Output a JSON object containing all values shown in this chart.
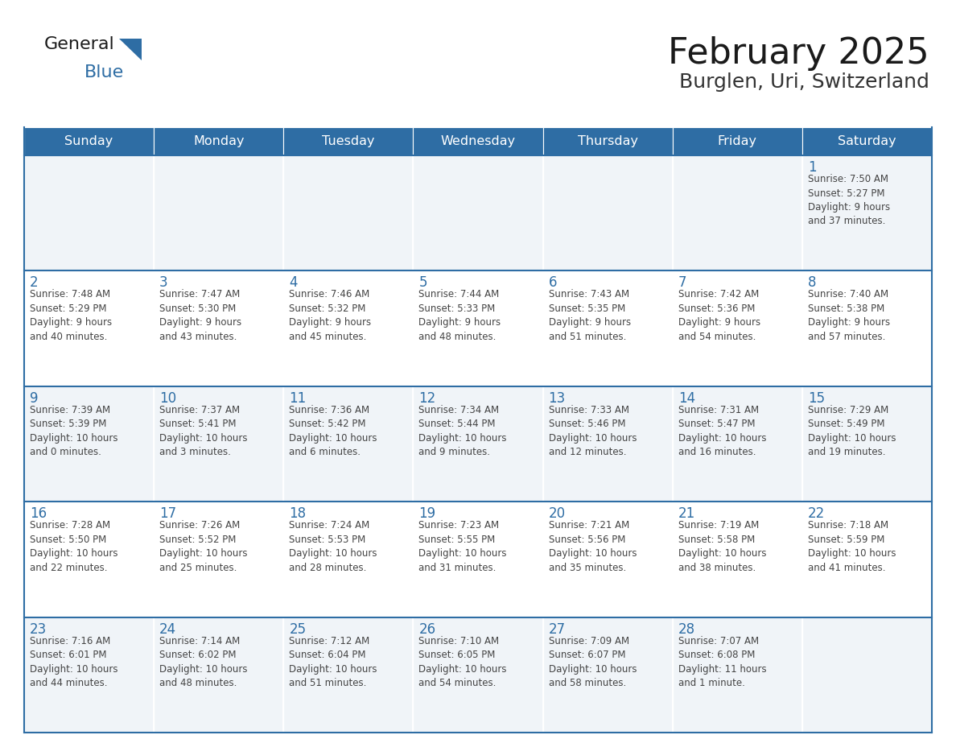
{
  "title": "February 2025",
  "subtitle": "Burglen, Uri, Switzerland",
  "header_color": "#2E6DA4",
  "header_text_color": "#FFFFFF",
  "cell_bg_even": "#FFFFFF",
  "cell_bg_odd": "#F0F4F8",
  "border_color": "#2E6DA4",
  "day_headers": [
    "Sunday",
    "Monday",
    "Tuesday",
    "Wednesday",
    "Thursday",
    "Friday",
    "Saturday"
  ],
  "title_color": "#1a1a1a",
  "subtitle_color": "#333333",
  "day_num_color": "#2E6DA4",
  "cell_text_color": "#444444",
  "logo_general_color": "#1a1a1a",
  "logo_blue_color": "#2E6DA4",
  "logo_triangle_color": "#2E6DA4",
  "weeks": [
    [
      {
        "day": null,
        "info": null
      },
      {
        "day": null,
        "info": null
      },
      {
        "day": null,
        "info": null
      },
      {
        "day": null,
        "info": null
      },
      {
        "day": null,
        "info": null
      },
      {
        "day": null,
        "info": null
      },
      {
        "day": 1,
        "info": "Sunrise: 7:50 AM\nSunset: 5:27 PM\nDaylight: 9 hours\nand 37 minutes."
      }
    ],
    [
      {
        "day": 2,
        "info": "Sunrise: 7:48 AM\nSunset: 5:29 PM\nDaylight: 9 hours\nand 40 minutes."
      },
      {
        "day": 3,
        "info": "Sunrise: 7:47 AM\nSunset: 5:30 PM\nDaylight: 9 hours\nand 43 minutes."
      },
      {
        "day": 4,
        "info": "Sunrise: 7:46 AM\nSunset: 5:32 PM\nDaylight: 9 hours\nand 45 minutes."
      },
      {
        "day": 5,
        "info": "Sunrise: 7:44 AM\nSunset: 5:33 PM\nDaylight: 9 hours\nand 48 minutes."
      },
      {
        "day": 6,
        "info": "Sunrise: 7:43 AM\nSunset: 5:35 PM\nDaylight: 9 hours\nand 51 minutes."
      },
      {
        "day": 7,
        "info": "Sunrise: 7:42 AM\nSunset: 5:36 PM\nDaylight: 9 hours\nand 54 minutes."
      },
      {
        "day": 8,
        "info": "Sunrise: 7:40 AM\nSunset: 5:38 PM\nDaylight: 9 hours\nand 57 minutes."
      }
    ],
    [
      {
        "day": 9,
        "info": "Sunrise: 7:39 AM\nSunset: 5:39 PM\nDaylight: 10 hours\nand 0 minutes."
      },
      {
        "day": 10,
        "info": "Sunrise: 7:37 AM\nSunset: 5:41 PM\nDaylight: 10 hours\nand 3 minutes."
      },
      {
        "day": 11,
        "info": "Sunrise: 7:36 AM\nSunset: 5:42 PM\nDaylight: 10 hours\nand 6 minutes."
      },
      {
        "day": 12,
        "info": "Sunrise: 7:34 AM\nSunset: 5:44 PM\nDaylight: 10 hours\nand 9 minutes."
      },
      {
        "day": 13,
        "info": "Sunrise: 7:33 AM\nSunset: 5:46 PM\nDaylight: 10 hours\nand 12 minutes."
      },
      {
        "day": 14,
        "info": "Sunrise: 7:31 AM\nSunset: 5:47 PM\nDaylight: 10 hours\nand 16 minutes."
      },
      {
        "day": 15,
        "info": "Sunrise: 7:29 AM\nSunset: 5:49 PM\nDaylight: 10 hours\nand 19 minutes."
      }
    ],
    [
      {
        "day": 16,
        "info": "Sunrise: 7:28 AM\nSunset: 5:50 PM\nDaylight: 10 hours\nand 22 minutes."
      },
      {
        "day": 17,
        "info": "Sunrise: 7:26 AM\nSunset: 5:52 PM\nDaylight: 10 hours\nand 25 minutes."
      },
      {
        "day": 18,
        "info": "Sunrise: 7:24 AM\nSunset: 5:53 PM\nDaylight: 10 hours\nand 28 minutes."
      },
      {
        "day": 19,
        "info": "Sunrise: 7:23 AM\nSunset: 5:55 PM\nDaylight: 10 hours\nand 31 minutes."
      },
      {
        "day": 20,
        "info": "Sunrise: 7:21 AM\nSunset: 5:56 PM\nDaylight: 10 hours\nand 35 minutes."
      },
      {
        "day": 21,
        "info": "Sunrise: 7:19 AM\nSunset: 5:58 PM\nDaylight: 10 hours\nand 38 minutes."
      },
      {
        "day": 22,
        "info": "Sunrise: 7:18 AM\nSunset: 5:59 PM\nDaylight: 10 hours\nand 41 minutes."
      }
    ],
    [
      {
        "day": 23,
        "info": "Sunrise: 7:16 AM\nSunset: 6:01 PM\nDaylight: 10 hours\nand 44 minutes."
      },
      {
        "day": 24,
        "info": "Sunrise: 7:14 AM\nSunset: 6:02 PM\nDaylight: 10 hours\nand 48 minutes."
      },
      {
        "day": 25,
        "info": "Sunrise: 7:12 AM\nSunset: 6:04 PM\nDaylight: 10 hours\nand 51 minutes."
      },
      {
        "day": 26,
        "info": "Sunrise: 7:10 AM\nSunset: 6:05 PM\nDaylight: 10 hours\nand 54 minutes."
      },
      {
        "day": 27,
        "info": "Sunrise: 7:09 AM\nSunset: 6:07 PM\nDaylight: 10 hours\nand 58 minutes."
      },
      {
        "day": 28,
        "info": "Sunrise: 7:07 AM\nSunset: 6:08 PM\nDaylight: 11 hours\nand 1 minute."
      },
      {
        "day": null,
        "info": null
      }
    ]
  ]
}
